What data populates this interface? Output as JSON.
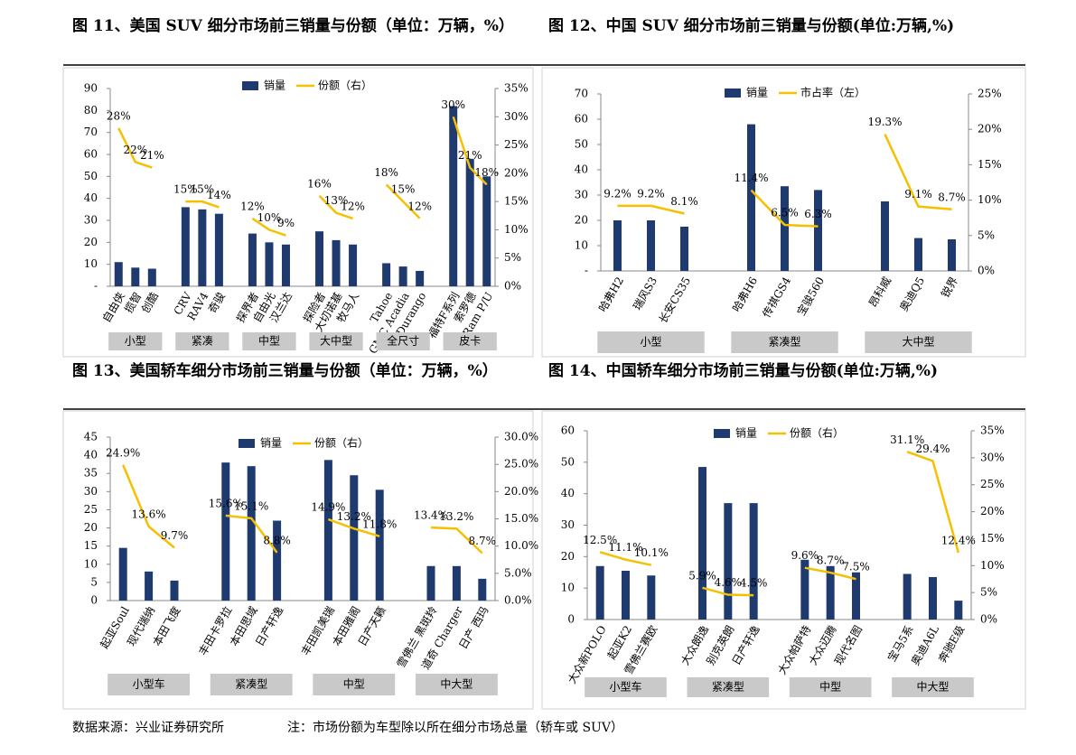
{
  "chart_data": [
    {
      "type": "combo",
      "title": "图 11、美国 SUV 细分市场前三销量与份额（单位：万辆，%）",
      "categories": [
        "自由侠",
        "揽智",
        "创酷",
        null,
        "CRV",
        "RAV4",
        "奇骏",
        null,
        "探界者",
        "自由光",
        "汉兰达",
        null,
        "探险者",
        "大切诺基",
        "牧马人",
        null,
        "Tahoe",
        "GMC Acadia",
        "Durango",
        null,
        "福特F系列",
        "索罗德",
        "Ram P/U"
      ],
      "group_labels": [
        "小型",
        "紧凑",
        "中型",
        "大中型",
        "全尺寸",
        "皮卡"
      ],
      "series": [
        {
          "name": "销量",
          "type": "bar",
          "color": "#1f3a6e",
          "values": [
            11,
            8.5,
            8,
            null,
            36,
            35,
            33,
            null,
            24,
            20,
            19,
            null,
            25,
            21,
            19,
            null,
            10.5,
            9,
            7,
            null,
            82,
            58,
            50
          ]
        },
        {
          "name": "份额（右）",
          "type": "line",
          "axis": "y2",
          "color": "#f5c000",
          "values": [
            28,
            22,
            21,
            null,
            15,
            15,
            14,
            null,
            12,
            10,
            9,
            null,
            16,
            13,
            12,
            null,
            18,
            15,
            12,
            null,
            30,
            21,
            18
          ],
          "value_labels": [
            "28%",
            "22%",
            "21%",
            null,
            "15%",
            "15%",
            "14%",
            null,
            "12%",
            "10%",
            "9%",
            null,
            "16%",
            "13%",
            "12%",
            null,
            "18%",
            "15%",
            "12%",
            null,
            "30%",
            "21%",
            "18%"
          ]
        }
      ],
      "ylim": [
        0,
        90
      ],
      "yticks": [
        {
          "value": 0,
          "label": "-"
        },
        10,
        20,
        30,
        40,
        50,
        60,
        70,
        80,
        90
      ],
      "y2lim": [
        0,
        35
      ],
      "y2ticks": [
        {
          "value": 0,
          "label": "0%"
        },
        {
          "value": 5,
          "label": "5%"
        },
        {
          "value": 10,
          "label": "10%"
        },
        {
          "value": 15,
          "label": "15%"
        },
        {
          "value": 20,
          "label": "20%"
        },
        {
          "value": 25,
          "label": "25%"
        },
        {
          "value": 30,
          "label": "30%"
        },
        {
          "value": 35,
          "label": "35%"
        }
      ]
    },
    {
      "type": "combo",
      "title": "图 12、中国 SUV 细分市场前三销量与份额(单位:万辆,%)",
      "categories": [
        "哈弗H2",
        "瑞风S3",
        "长安CS35",
        null,
        "哈弗H6",
        "传祺GS4",
        "宝骏560",
        null,
        "昂科威",
        "奥迪Q5",
        "锐界"
      ],
      "group_labels": [
        "小型",
        "紧凑型",
        "大中型"
      ],
      "series": [
        {
          "name": "销量",
          "type": "bar",
          "color": "#1f3a6e",
          "values": [
            20,
            20,
            17.5,
            null,
            58,
            33.5,
            32,
            null,
            27.5,
            13,
            12.5
          ]
        },
        {
          "name": "市占率（左）",
          "type": "line",
          "axis": "y2",
          "color": "#f5c000",
          "values": [
            9.2,
            9.2,
            8.1,
            null,
            11.4,
            6.5,
            6.3,
            null,
            19.3,
            9.1,
            8.7
          ],
          "value_labels": [
            "9.2%",
            "9.2%",
            "8.1%",
            null,
            "11.4%",
            "6.5%",
            "6.3%",
            null,
            "19.3%",
            "9.1%",
            "8.7%"
          ]
        }
      ],
      "ylim": [
        0,
        70
      ],
      "yticks": [
        {
          "value": 0,
          "label": "-"
        },
        10,
        20,
        30,
        40,
        50,
        60,
        70
      ],
      "y2lim": [
        0,
        25
      ],
      "y2ticks": [
        {
          "value": 0,
          "label": "0%"
        },
        {
          "value": 5,
          "label": "5%"
        },
        {
          "value": 10,
          "label": "10%"
        },
        {
          "value": 15,
          "label": "15%"
        },
        {
          "value": 20,
          "label": "20%"
        },
        {
          "value": 25,
          "label": "25%"
        }
      ]
    },
    {
      "type": "combo",
      "title": "图 13、美国轿车细分市场前三销量与份额（单位：万辆，%）",
      "categories": [
        "起亚Soul",
        "现代瑞纳",
        "本田飞度",
        null,
        "丰田卡罗拉",
        "本田思域",
        "日产轩逸",
        null,
        "丰田凯美瑞",
        "本田雅阁",
        "日产天籁",
        null,
        "雪佛兰 黑斑羚",
        "道奇 Charger",
        "日产 西玛"
      ],
      "group_labels": [
        "小型车",
        "紧凑型",
        "中型",
        "中大型"
      ],
      "series": [
        {
          "name": "销量",
          "type": "bar",
          "color": "#1f3a6e",
          "values": [
            14.5,
            8,
            5.5,
            null,
            38,
            37,
            22,
            null,
            38.7,
            34.5,
            30.5,
            null,
            9.5,
            9.5,
            6
          ]
        },
        {
          "name": "份额（右）",
          "type": "line",
          "axis": "y2",
          "color": "#f5c000",
          "values": [
            24.9,
            13.6,
            9.7,
            null,
            15.6,
            15.1,
            8.8,
            null,
            14.9,
            13.2,
            11.8,
            null,
            13.4,
            13.2,
            8.7
          ],
          "value_labels": [
            "24.9%",
            "13.6%",
            "9.7%",
            null,
            "15.6%",
            "15.1%",
            "8.8%",
            null,
            "14.9%",
            "13.2%",
            "11.8%",
            null,
            "13.4%",
            "13.2%",
            "8.7%"
          ]
        }
      ],
      "ylim": [
        0,
        45
      ],
      "yticks": [
        0,
        5,
        10,
        15,
        20,
        25,
        30,
        35,
        40,
        45
      ],
      "y2lim": [
        0,
        30
      ],
      "y2ticks": [
        {
          "value": 0,
          "label": "0.0%"
        },
        {
          "value": 5,
          "label": "5.0%"
        },
        {
          "value": 10,
          "label": "10.0%"
        },
        {
          "value": 15,
          "label": "15.0%"
        },
        {
          "value": 20,
          "label": "20.0%"
        },
        {
          "value": 25,
          "label": "25.0%"
        },
        {
          "value": 30,
          "label": "30.0%"
        }
      ]
    },
    {
      "type": "combo",
      "title": "图 14、中国轿车细分市场前三销量与份额(单位:万辆,%)",
      "categories": [
        "大众新POLO",
        "起亚K2",
        "雪佛兰赛欧",
        null,
        "大众朗逸",
        "别克英朗",
        "日产轩逸",
        null,
        "大众帕萨特",
        "大众迈腾",
        "现代名图",
        null,
        "宝马5系",
        "奥迪A6L",
        "奔驰E级"
      ],
      "group_labels": [
        "小型车",
        "紧凑型",
        "中型",
        "中大型"
      ],
      "series": [
        {
          "name": "销量",
          "type": "bar",
          "color": "#1f3a6e",
          "values": [
            17,
            15.5,
            14,
            null,
            48.5,
            37,
            37,
            null,
            19,
            17,
            15,
            null,
            14.5,
            13.5,
            6
          ]
        },
        {
          "name": "份额（右）",
          "type": "line",
          "axis": "y2",
          "color": "#f5c000",
          "values": [
            12.5,
            11.1,
            10.1,
            null,
            5.9,
            4.6,
            4.5,
            null,
            9.6,
            8.7,
            7.5,
            null,
            31.1,
            29.4,
            12.4
          ],
          "value_labels": [
            "12.5%",
            "11.1%",
            "10.1%",
            null,
            "5.9%",
            "4.6%",
            "4.5%",
            null,
            "9.6%",
            "8.7%",
            "7.5%",
            null,
            "31.1%",
            "29.4%",
            "12.4%"
          ]
        }
      ],
      "ylim": [
        0,
        60
      ],
      "yticks": [
        0,
        10,
        20,
        30,
        40,
        50,
        60
      ],
      "y2lim": [
        0,
        35
      ],
      "y2ticks": [
        {
          "value": 0,
          "label": "0%"
        },
        {
          "value": 5,
          "label": "5%"
        },
        {
          "value": 10,
          "label": "10%"
        },
        {
          "value": 15,
          "label": "15%"
        },
        {
          "value": 20,
          "label": "20%"
        },
        {
          "value": 25,
          "label": "25%"
        },
        {
          "value": 30,
          "label": "30%"
        },
        {
          "value": 35,
          "label": "35%"
        }
      ]
    }
  ],
  "source": "数据来源：兴业证券研究所",
  "note": "注：市场份额为车型除以所在细分市场总量（轿车或 SUV）"
}
